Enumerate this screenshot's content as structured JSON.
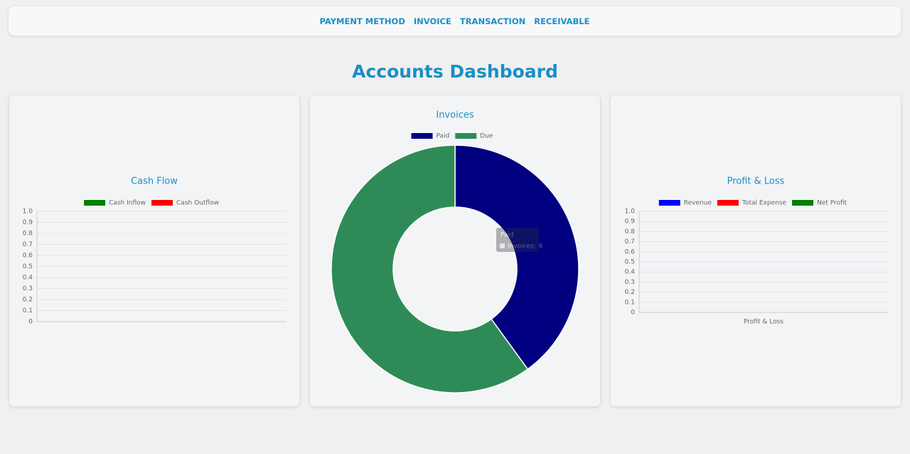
{
  "nav": {
    "items": [
      "PAYMENT METHOD",
      "INVOICE",
      "TRANSACTION",
      "RECEIVABLE"
    ]
  },
  "heading": "Accounts Dashboard",
  "chart_data": [
    {
      "type": "bar",
      "title": "Cash Flow",
      "categories": [],
      "series": [
        {
          "name": "Cash Inflow",
          "color": "#008000",
          "values": []
        },
        {
          "name": "Cash Outflow",
          "color": "#ff0000",
          "values": []
        }
      ],
      "ylim": [
        0,
        1
      ],
      "yticks": [
        0,
        0.1,
        0.2,
        0.3,
        0.4,
        0.5,
        0.6,
        0.7,
        0.8,
        0.9,
        {
          "value": 1,
          "label": "1.0"
        }
      ],
      "grid": true
    },
    {
      "type": "doughnut",
      "title": "Invoices",
      "categories": [
        "Paid",
        "Due"
      ],
      "series_name": "Invoices",
      "values": [
        6,
        9
      ],
      "colors": [
        "#000080",
        "#2e8b57"
      ]
    },
    {
      "type": "bar",
      "title": "Profit & Loss",
      "categories": [
        "Profit & Loss"
      ],
      "series": [
        {
          "name": "Revenue",
          "color": "#0000ff",
          "values": [
            null
          ]
        },
        {
          "name": "Total Expense",
          "color": "#ff0000",
          "values": [
            null
          ]
        },
        {
          "name": "Net Profit",
          "color": "#008000",
          "values": [
            null
          ]
        }
      ],
      "ylim": [
        0,
        1
      ],
      "yticks": [
        0,
        0.1,
        0.2,
        0.3,
        0.4,
        0.5,
        0.6,
        0.7,
        0.8,
        0.9,
        {
          "value": 1,
          "label": "1.0"
        }
      ],
      "grid": true
    }
  ]
}
